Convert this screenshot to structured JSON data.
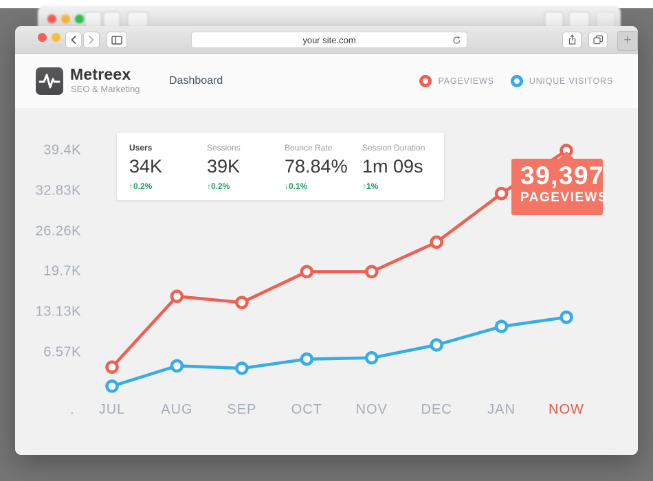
{
  "browser": {
    "url": "your site.com",
    "new_tab_label": "+"
  },
  "brand": {
    "name": "Metreex",
    "tagline": "SEO & Marketing"
  },
  "nav": {
    "title": "Dashboard"
  },
  "legend": [
    {
      "label": "PAGEVIEWS",
      "color": "#ee6052"
    },
    {
      "label": "UNIQUE VISITORS",
      "color": "#36ace8"
    }
  ],
  "stats": [
    {
      "label": "Users",
      "value": "34K",
      "change": "↑0.2%",
      "emphasis": true
    },
    {
      "label": "Sessions",
      "value": "39K",
      "change": "↑0.2%",
      "emphasis": false
    },
    {
      "label": "Bounce Rate",
      "value": "78.84%",
      "change": "↓0.1%",
      "emphasis": false
    },
    {
      "label": "Session Duration",
      "value": "1m 09s",
      "change": "↑1%",
      "emphasis": false
    }
  ],
  "tooltip": {
    "value": "39,397",
    "label": "PAGEVIEWS"
  },
  "colors": {
    "pageviews": "#ee6052",
    "unique_visitors": "#36ace8",
    "tooltip_bg": "#f47563",
    "positive_green": "#1f9e5e",
    "backdrop": "#757575",
    "axis_text": "#a5adb7",
    "now_label": "#e4584a"
  },
  "chart_data": {
    "type": "line",
    "categories": [
      "JUL",
      "AUG",
      "SEP",
      "OCT",
      "NOV",
      "DEC",
      "JAN",
      "NOW"
    ],
    "x_prefix": ".",
    "highlight_category": "NOW",
    "series": [
      {
        "name": "PAGEVIEWS",
        "color": "#ee6052",
        "values": [
          4200,
          15700,
          14700,
          19700,
          19700,
          24500,
          32400,
          39397
        ]
      },
      {
        "name": "UNIQUE VISITORS",
        "color": "#36ace8",
        "values": [
          1100,
          4400,
          4000,
          5500,
          5700,
          7800,
          10800,
          12300
        ]
      }
    ],
    "y_ticks": [
      {
        "label": "6.57K",
        "value": 6570
      },
      {
        "label": "13.13K",
        "value": 13130
      },
      {
        "label": "19.7K",
        "value": 19700
      },
      {
        "label": "26.26K",
        "value": 26260
      },
      {
        "label": "32.83K",
        "value": 32830
      },
      {
        "label": "39.4K",
        "value": 39400
      }
    ],
    "ylim": [
      0,
      44000
    ],
    "grid": false,
    "legend_position": "top-right",
    "annotation": {
      "category": "NOW",
      "series": "PAGEVIEWS",
      "text": "39,397 PAGEVIEWS"
    }
  }
}
